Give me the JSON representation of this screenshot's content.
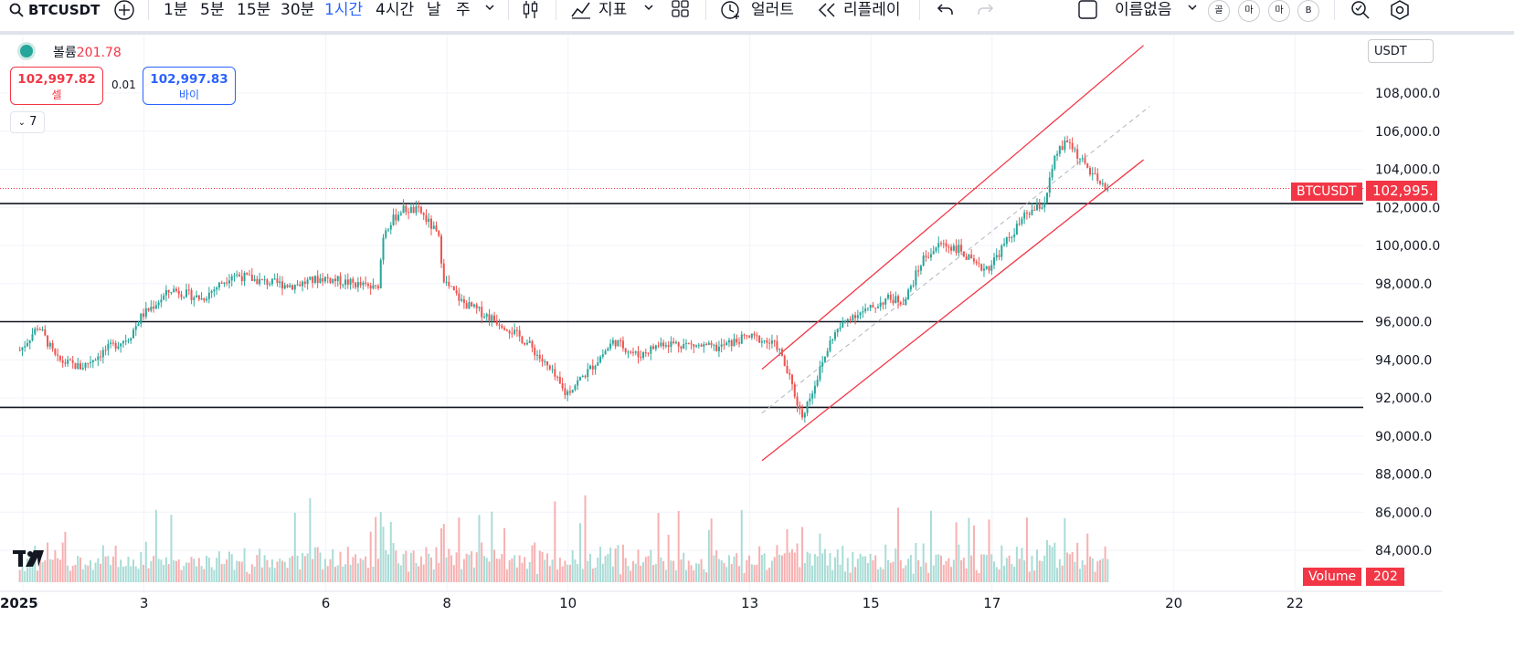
{
  "toolbar": {
    "symbol": "BTCUSDT",
    "intervals": [
      {
        "label": "1분",
        "active": false
      },
      {
        "label": "5분",
        "active": false
      },
      {
        "label": "15분",
        "active": false
      },
      {
        "label": "30분",
        "active": false
      },
      {
        "label": "1시간",
        "active": true
      },
      {
        "label": "4시간",
        "active": false
      },
      {
        "label": "날",
        "active": false
      },
      {
        "label": "주",
        "active": false
      }
    ],
    "indicators_label": "지표",
    "alert_label": "얼러트",
    "replay_label": "리플레이",
    "layout_name": "이름없음",
    "quick_buttons": [
      "골",
      "마",
      "마",
      "B"
    ],
    "icons": [
      "search-icon",
      "add-symbol-icon",
      "chevron-down-icon",
      "candles-icon",
      "indicators-icon",
      "layout-grid-icon",
      "alert-clock-icon",
      "replay-icon",
      "undo-icon",
      "redo-icon",
      "save-checkbox-icon",
      "zoom-icon",
      "settings-icon"
    ]
  },
  "legend": {
    "volume_label": "볼륨",
    "volume_value": "201.78",
    "sell_price": "102,997.82",
    "sell_label": "셀",
    "spread": "0.01",
    "buy_price": "102,997.83",
    "buy_label": "바이",
    "collapse_count": "7"
  },
  "price_axis": {
    "currency": "USDT",
    "ticks": [
      "108,000.0",
      "106,000.0",
      "104,000.0",
      "102,000.0",
      "100,000.0",
      "98,000.0",
      "96,000.0",
      "94,000.0",
      "92,000.0",
      "90,000.0",
      "88,000.0",
      "86,000.0",
      "84,000.0"
    ],
    "last_symbol_label": "BTCUSDT",
    "last_price_label": "102,995.",
    "volume_label": "Volume",
    "volume_value": "202"
  },
  "time_axis": {
    "labels": [
      "2025",
      "3",
      "6",
      "8",
      "10",
      "13",
      "15",
      "17",
      "20",
      "22"
    ]
  },
  "colors": {
    "up": "#26a69a",
    "down": "#ef5350",
    "channel": "#f23645",
    "last_price": "#f23645",
    "buy": "#2962ff",
    "horizontal_levels": "#131722"
  },
  "chart_data": {
    "type": "candlestick",
    "symbol": "BTCUSDT",
    "interval": "1시간",
    "ylim": [
      83000,
      110000
    ],
    "horizontal_levels": [
      102200,
      96000,
      91500
    ],
    "last_price": 102995,
    "x_labels": [
      "2025",
      "3",
      "6",
      "8",
      "10",
      "13",
      "15",
      "17",
      "20",
      "22"
    ],
    "y_ticks": [
      108000,
      106000,
      104000,
      102000,
      100000,
      98000,
      96000,
      94000,
      92000,
      90000,
      88000,
      86000,
      84000
    ],
    "price_path_days": [
      1.0,
      1.3,
      1.6,
      2.0,
      2.4,
      2.8,
      3.0,
      3.5,
      4.0,
      4.5,
      5.0,
      5.5,
      6.0,
      6.5,
      6.9,
      7.0,
      7.3,
      7.6,
      7.9,
      8.0,
      8.3,
      8.6,
      9.0,
      9.4,
      9.8,
      10.0,
      10.4,
      10.8,
      11.2,
      11.6,
      12.0,
      12.5,
      13.0,
      13.2,
      13.5,
      13.7,
      13.9,
      14.1,
      14.4,
      14.7,
      15.0,
      15.3,
      15.6,
      15.9,
      16.2,
      16.5,
      16.8,
      17.0,
      17.3,
      17.6,
      17.9,
      18.1,
      18.3,
      18.5,
      18.7,
      18.9
    ],
    "price_path_values": [
      94500,
      95800,
      94000,
      93600,
      94500,
      95200,
      96300,
      97700,
      97200,
      98500,
      98100,
      97900,
      98300,
      98000,
      97700,
      100800,
      101900,
      101800,
      100500,
      98100,
      97000,
      96500,
      95800,
      94800,
      93200,
      92200,
      93500,
      95000,
      94200,
      94900,
      94800,
      94600,
      95200,
      95100,
      94700,
      93000,
      91000,
      92600,
      95200,
      96300,
      96600,
      97200,
      97100,
      99300,
      100100,
      99800,
      98800,
      98900,
      100300,
      101600,
      102200,
      104800,
      105500,
      104500,
      103700,
      102900
    ]
  }
}
